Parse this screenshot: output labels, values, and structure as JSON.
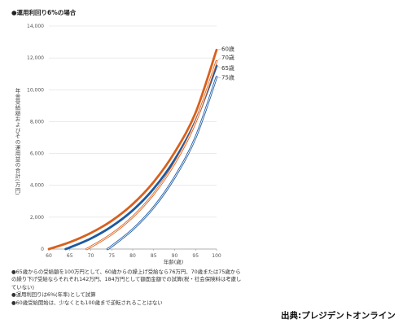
{
  "title": "●運用利回り6%の場合",
  "credit": "出典:プレジデントオンライン",
  "notes": [
    "●65歳からの受給額を100万円として、60歳からの繰上げ受給なら76万円、70歳または75歳からの繰り下げ受給ならそれぞれ142万円、184万円として額面金額での試算(税・社会保険料は考慮していない)",
    "●運用利回りは6%(年率)として試算",
    "●60歳受給開始は、少なくとも100歳まで逆転されることはない"
  ],
  "chart_data": {
    "type": "line",
    "title": "●運用利回り6%の場合",
    "xlabel": "年齢(歳)",
    "ylabel": "年金受給額およびその運用益の合計(万円)",
    "xlim": [
      60,
      100
    ],
    "ylim": [
      0,
      14000
    ],
    "xticks": [
      60,
      65,
      70,
      75,
      80,
      85,
      90,
      95,
      100
    ],
    "yticks": [
      0,
      2000,
      4000,
      6000,
      8000,
      10000,
      12000,
      14000
    ],
    "ytick_labels": [
      "0",
      "2,000",
      "4,000",
      "6,000",
      "8,000",
      "10,000",
      "12,000",
      "14,000"
    ],
    "grid": "horizontal",
    "legend": "end-labels",
    "series": [
      {
        "name": "60歳",
        "color": "#d9601c",
        "style": "solid-thick",
        "x": [
          60,
          65,
          70,
          75,
          80,
          85,
          90,
          95,
          100
        ],
        "y": [
          0,
          430,
          1010,
          1780,
          2820,
          4210,
          6070,
          8560,
          12500
        ]
      },
      {
        "name": "65歳",
        "color": "#1d5aa0",
        "style": "solid-thick",
        "x": [
          64,
          65,
          70,
          75,
          80,
          85,
          90,
          95,
          100
        ],
        "y": [
          0,
          100,
          660,
          1420,
          2430,
          3790,
          5610,
          8040,
          11500
        ]
      },
      {
        "name": "70歳",
        "color": "#d9601c",
        "style": "double",
        "x": [
          69,
          70,
          75,
          80,
          85,
          90,
          95,
          100
        ],
        "y": [
          0,
          140,
          940,
          2020,
          3460,
          5390,
          7980,
          11800
        ]
      },
      {
        "name": "75歳",
        "color": "#1d5aa0",
        "style": "double",
        "x": [
          74,
          75,
          80,
          85,
          90,
          95,
          100
        ],
        "y": [
          0,
          180,
          1230,
          2620,
          4500,
          7010,
          10800
        ]
      }
    ]
  }
}
